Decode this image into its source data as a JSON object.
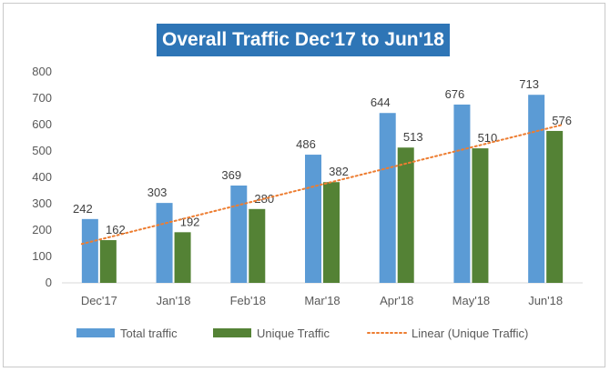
{
  "chart_data": {
    "type": "bar",
    "title": "Overall Traffic Dec'17 to Jun'18",
    "categories": [
      "Dec'17",
      "Jan'18",
      "Feb'18",
      "Mar'18",
      "Apr'18",
      "May'18",
      "Jun'18"
    ],
    "series": [
      {
        "name": "Total traffic",
        "values": [
          242,
          303,
          369,
          486,
          644,
          676,
          713
        ],
        "color": "#5b9bd5"
      },
      {
        "name": "Unique Traffic",
        "values": [
          162,
          192,
          280,
          382,
          513,
          510,
          576
        ],
        "color": "#548235"
      }
    ],
    "trendline": {
      "name": "Linear (Unique Traffic)",
      "type": "linear",
      "of_series": "Unique Traffic",
      "color": "#ed7d31",
      "style": "dotted"
    },
    "ylim": [
      0,
      800
    ],
    "yticks": [
      0,
      100,
      200,
      300,
      400,
      500,
      600,
      700,
      800
    ],
    "xlabel": "",
    "ylabel": "",
    "grid": false,
    "legend": "bottom",
    "title_background": "#2e75b6"
  }
}
